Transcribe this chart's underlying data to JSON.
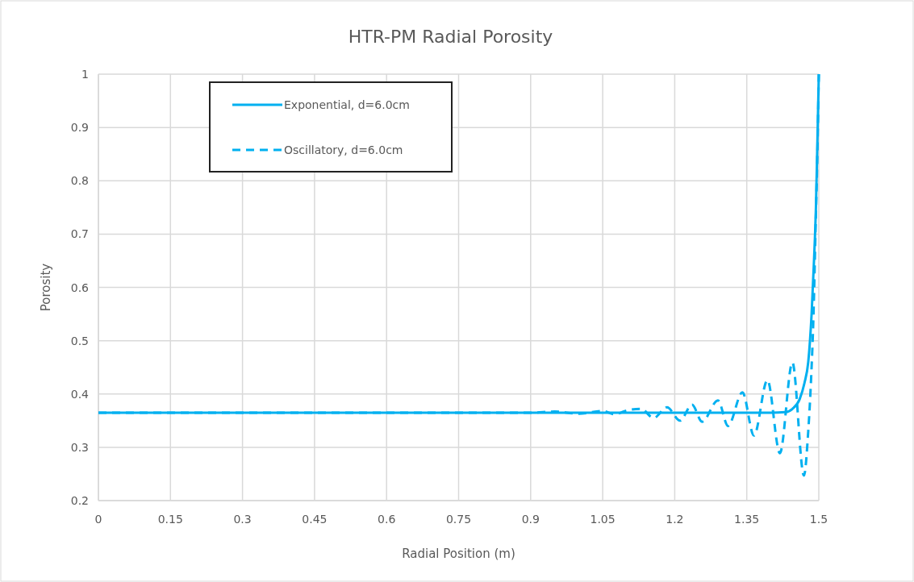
{
  "chart_data": {
    "type": "line",
    "title": "HTR-PM Radial Porosity",
    "xlabel": "Radial Position (m)",
    "ylabel": "Porosity",
    "xlim": [
      0,
      1.5
    ],
    "xticks": [
      0,
      0.15,
      0.3,
      0.45,
      0.6,
      0.75,
      0.9,
      1.05,
      1.2,
      1.35,
      1.5
    ],
    "ylim": [
      0.2,
      1
    ],
    "yticks": [
      0.2,
      0.3,
      0.4,
      0.5,
      0.6,
      0.7,
      0.8,
      0.9,
      1
    ],
    "grid": true,
    "legend": "top left",
    "marker": "none",
    "series": [
      {
        "name": "Exponential, d=6.0cm",
        "color": "#00b0f0",
        "line_style": "solid",
        "x": [
          0,
          0.3,
          0.6,
          0.9,
          1.2,
          1.4,
          1.43,
          1.445,
          1.46,
          1.47,
          1.478,
          1.485,
          1.49,
          1.494,
          1.497,
          1.5
        ],
        "values": [
          0.365,
          0.365,
          0.365,
          0.365,
          0.365,
          0.365,
          0.366,
          0.372,
          0.39,
          0.42,
          0.46,
          0.55,
          0.65,
          0.75,
          0.87,
          1
        ]
      },
      {
        "name": "Oscillatory, d=6.0cm",
        "color": "#00b0f0",
        "line_style": "dashed",
        "x": [
          0,
          0.3,
          0.6,
          0.9,
          0.95,
          1.0,
          1.05,
          1.075,
          1.1,
          1.13,
          1.156,
          1.184,
          1.211,
          1.236,
          1.257,
          1.29,
          1.311,
          1.341,
          1.365,
          1.393,
          1.419,
          1.445,
          1.469,
          1.478,
          1.484,
          1.489,
          1.493,
          1.497,
          1.5
        ],
        "values": [
          0.365,
          0.365,
          0.365,
          0.365,
          0.367,
          0.363,
          0.368,
          0.362,
          0.369,
          0.372,
          0.355,
          0.375,
          0.35,
          0.38,
          0.348,
          0.388,
          0.34,
          0.403,
          0.322,
          0.426,
          0.289,
          0.459,
          0.247,
          0.33,
          0.43,
          0.55,
          0.7,
          0.85,
          1
        ]
      }
    ]
  }
}
